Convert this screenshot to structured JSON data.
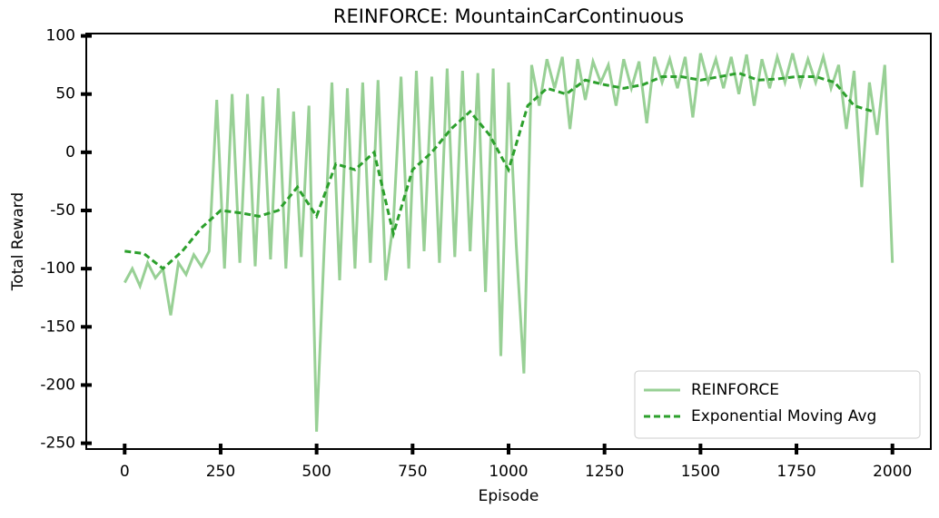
{
  "chart_data": {
    "type": "line",
    "title": "REINFORCE: MountainCarContinuous",
    "x_label": "Episode",
    "y_label": "Total Reward",
    "xlim": [
      -100,
      2100
    ],
    "ylim": [
      -255,
      102
    ],
    "xticks": [
      0,
      250,
      500,
      750,
      1000,
      1250,
      1500,
      1750,
      2000
    ],
    "yticks": [
      -250,
      -200,
      -150,
      -100,
      -50,
      0,
      50,
      100
    ],
    "legend": "lower right",
    "series": [
      {
        "name": "REINFORCE",
        "color": "#98d095",
        "style": "solid",
        "x": [
          0,
          20,
          40,
          60,
          80,
          100,
          120,
          140,
          160,
          180,
          200,
          220,
          240,
          260,
          280,
          300,
          320,
          340,
          360,
          380,
          400,
          420,
          440,
          460,
          480,
          500,
          520,
          540,
          560,
          580,
          600,
          620,
          640,
          660,
          680,
          700,
          720,
          740,
          760,
          780,
          800,
          820,
          840,
          860,
          880,
          900,
          920,
          940,
          960,
          980,
          1000,
          1020,
          1040,
          1060,
          1080,
          1100,
          1120,
          1140,
          1160,
          1180,
          1200,
          1220,
          1240,
          1260,
          1280,
          1300,
          1320,
          1340,
          1360,
          1380,
          1400,
          1420,
          1440,
          1460,
          1480,
          1500,
          1520,
          1540,
          1560,
          1580,
          1600,
          1620,
          1640,
          1660,
          1680,
          1700,
          1720,
          1740,
          1760,
          1780,
          1800,
          1820,
          1840,
          1860,
          1880,
          1900,
          1920,
          1940,
          1960,
          1980,
          2000
        ],
        "values": [
          -112,
          -100,
          -115,
          -95,
          -108,
          -100,
          -140,
          -95,
          -105,
          -88,
          -98,
          -85,
          45,
          -100,
          50,
          -95,
          50,
          -98,
          48,
          -92,
          55,
          -100,
          35,
          -90,
          40,
          -240,
          -80,
          60,
          -110,
          55,
          -100,
          60,
          -95,
          62,
          -110,
          -60,
          65,
          -100,
          70,
          -85,
          65,
          -95,
          72,
          -90,
          70,
          -85,
          68,
          -120,
          72,
          -175,
          60,
          -80,
          -190,
          75,
          40,
          80,
          55,
          82,
          20,
          80,
          45,
          78,
          60,
          75,
          40,
          80,
          55,
          78,
          25,
          82,
          60,
          80,
          55,
          82,
          30,
          85,
          60,
          80,
          55,
          82,
          50,
          84,
          40,
          80,
          55,
          82,
          60,
          85,
          58,
          80,
          60,
          82,
          55,
          75,
          20,
          70,
          -30,
          60,
          15,
          75,
          -95
        ]
      },
      {
        "name": "Exponential Moving Avg",
        "color": "#2ca02c",
        "style": "dashed",
        "x": [
          0,
          50,
          100,
          150,
          200,
          250,
          300,
          350,
          400,
          450,
          500,
          550,
          600,
          650,
          700,
          750,
          800,
          850,
          900,
          950,
          1000,
          1050,
          1100,
          1150,
          1200,
          1250,
          1300,
          1350,
          1400,
          1450,
          1500,
          1550,
          1600,
          1650,
          1700,
          1750,
          1800,
          1850,
          1900,
          1950
        ],
        "values": [
          -85,
          -87,
          -100,
          -85,
          -65,
          -50,
          -52,
          -55,
          -50,
          -30,
          -55,
          -10,
          -15,
          0,
          -70,
          -15,
          0,
          20,
          35,
          15,
          -15,
          40,
          55,
          50,
          62,
          58,
          55,
          58,
          65,
          65,
          62,
          65,
          68,
          62,
          63,
          65,
          65,
          60,
          40,
          35
        ]
      }
    ]
  }
}
